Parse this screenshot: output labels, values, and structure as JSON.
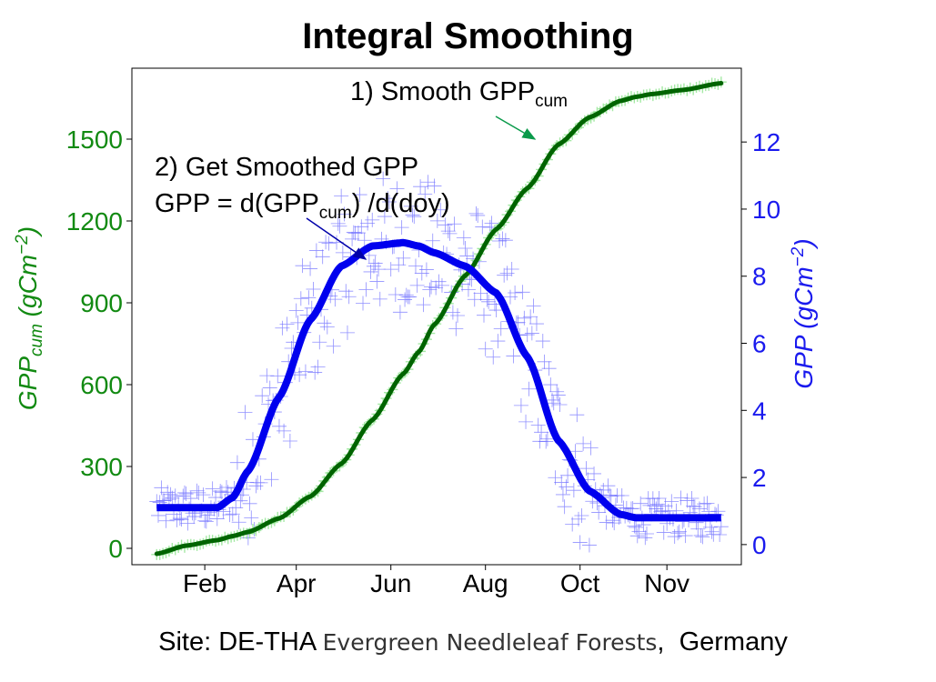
{
  "title": "Integral Smoothing",
  "caption": {
    "site": "Site: DE-THA ",
    "ecosystem": "Evergreen Needleleaf Forests",
    "country": ",  Germany"
  },
  "annotations": {
    "a1_prefix": "1) Smooth GPP",
    "a1_sub": "cum",
    "a2_line1": "2) Get Smoothed  GPP",
    "a2_line2_pre": "GPP = d(GPP",
    "a2_line2_sub": "cum",
    "a2_line2_post": ") /d(doy)"
  },
  "colors": {
    "gpp_cum_line": "#006400",
    "gpp_cum_markers": "#7fe07f",
    "gpp_line": "#0000ee",
    "gpp_markers": "#6b6bff",
    "left_axis": "#128a12",
    "right_axis": "#1a1aee",
    "arrow1": "#0a9a4a",
    "arrow2": "#0000aa"
  },
  "chart_data": {
    "type": "line",
    "x": [
      1,
      20,
      40,
      50,
      60,
      80,
      100,
      120,
      140,
      160,
      170,
      180,
      200,
      220,
      240,
      260,
      280,
      300,
      310,
      320,
      340,
      365
    ],
    "xticks": [
      {
        "label": "Feb",
        "value": 32
      },
      {
        "label": "Apr",
        "value": 91
      },
      {
        "label": "Jun",
        "value": 152
      },
      {
        "label": "Aug",
        "value": 213
      },
      {
        "label": "Oct",
        "value": 274
      },
      {
        "label": "Nov",
        "value": 330
      }
    ],
    "xlim": [
      -15,
      378
    ],
    "left_axis": {
      "label": "GPP",
      "label_sub": "cum",
      "label_unit": " (gCm",
      "label_sup": "−2",
      "label_end": ")",
      "ylim": [
        -60,
        1760
      ],
      "ticks": [
        0,
        300,
        600,
        900,
        1200,
        1500
      ]
    },
    "right_axis": {
      "label": "GPP (gCm",
      "label_sup": "−2",
      "label_end": ")",
      "ylim": [
        -0.6,
        14.2
      ],
      "ticks": [
        0,
        2,
        4,
        6,
        8,
        10,
        12
      ]
    },
    "series": [
      {
        "axis": "left",
        "values": [
          -20,
          10,
          30,
          45,
          60,
          110,
          190,
          310,
          470,
          640,
          720,
          820,
          1000,
          1170,
          1320,
          1480,
          1580,
          1640,
          1655,
          1665,
          1680,
          1705
        ]
      },
      {
        "axis": "right",
        "values": [
          1.1,
          1.1,
          1.1,
          1.4,
          2.2,
          4.4,
          6.7,
          8.3,
          8.9,
          9.0,
          8.9,
          8.7,
          8.3,
          7.5,
          5.6,
          3.1,
          1.6,
          0.9,
          0.8,
          0.8,
          0.8,
          0.8
        ]
      }
    ],
    "scatter_note_range": {
      "gpp_points_min": 0,
      "gpp_points_max": 11.3
    }
  }
}
